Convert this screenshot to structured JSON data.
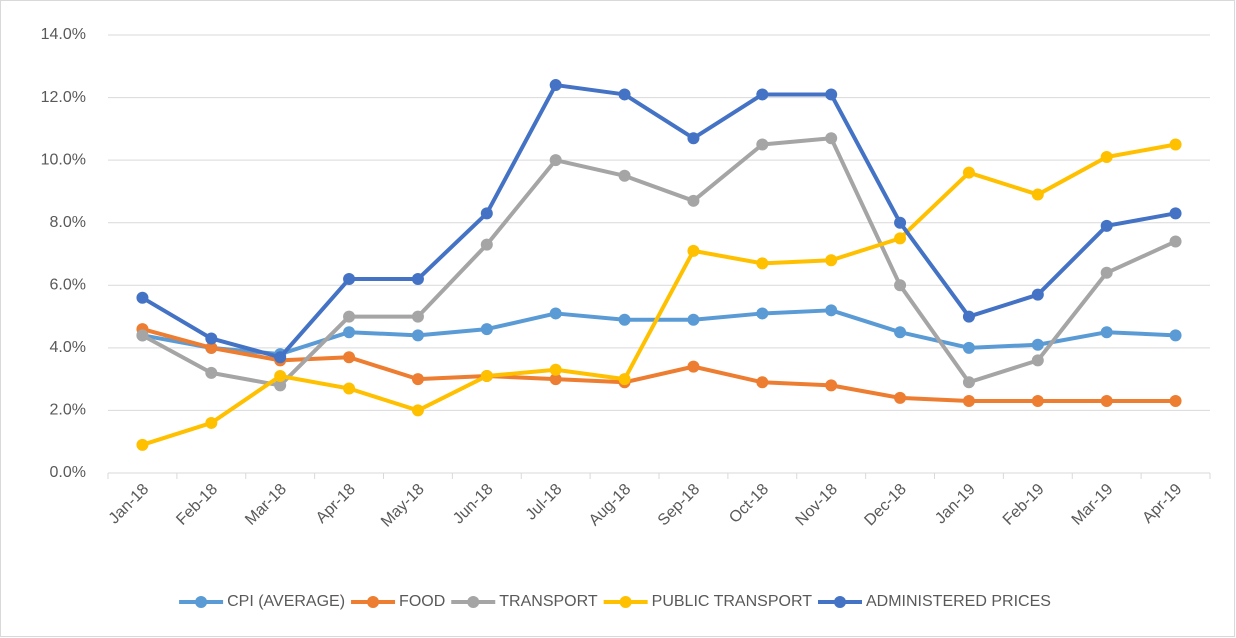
{
  "chart_data": {
    "type": "line",
    "categories": [
      "Jan-18",
      "Feb-18",
      "Mar-18",
      "Apr-18",
      "May-18",
      "Jun-18",
      "Jul-18",
      "Aug-18",
      "Sep-18",
      "Oct-18",
      "Nov-18",
      "Dec-18",
      "Jan-19",
      "Feb-19",
      "Mar-19",
      "Apr-19"
    ],
    "series": [
      {
        "name": "CPI (AVERAGE)",
        "color": "#5b9bd5",
        "values": [
          4.4,
          4.0,
          3.8,
          4.5,
          4.4,
          4.6,
          5.1,
          4.9,
          4.9,
          5.1,
          5.2,
          4.5,
          4.0,
          4.1,
          4.5,
          4.4
        ]
      },
      {
        "name": "FOOD",
        "color": "#ed7d31",
        "values": [
          4.6,
          4.0,
          3.6,
          3.7,
          3.0,
          3.1,
          3.0,
          2.9,
          3.4,
          2.9,
          2.8,
          2.4,
          2.3,
          2.3,
          2.3,
          2.3
        ]
      },
      {
        "name": "TRANSPORT",
        "color": "#a5a5a5",
        "values": [
          4.4,
          3.2,
          2.8,
          5.0,
          5.0,
          7.3,
          10.0,
          9.5,
          8.7,
          10.5,
          10.7,
          6.0,
          2.9,
          3.6,
          6.4,
          7.4
        ]
      },
      {
        "name": "PUBLIC TRANSPORT",
        "color": "#ffc000",
        "values": [
          0.9,
          1.6,
          3.1,
          2.7,
          2.0,
          3.1,
          3.3,
          3.0,
          7.1,
          6.7,
          6.8,
          7.5,
          9.6,
          8.9,
          10.1,
          10.5
        ]
      },
      {
        "name": "ADMINISTERED PRICES",
        "color": "#4472c4",
        "values": [
          5.6,
          4.3,
          3.7,
          6.2,
          6.2,
          8.3,
          12.4,
          12.1,
          10.7,
          12.1,
          12.1,
          8.0,
          5.0,
          5.7,
          7.9,
          8.3
        ]
      }
    ],
    "ylim": [
      0,
      14
    ],
    "yticks": [
      {
        "value": 0,
        "label": "0.0%"
      },
      {
        "value": 2,
        "label": "2.0%"
      },
      {
        "value": 4,
        "label": "4.0%"
      },
      {
        "value": 6,
        "label": "6.0%"
      },
      {
        "value": 8,
        "label": "8.0%"
      },
      {
        "value": 10,
        "label": "10.0%"
      },
      {
        "value": 12,
        "label": "12.0%"
      },
      {
        "value": 14,
        "label": "14.0%"
      }
    ],
    "grid": true,
    "legend": "bottom"
  }
}
